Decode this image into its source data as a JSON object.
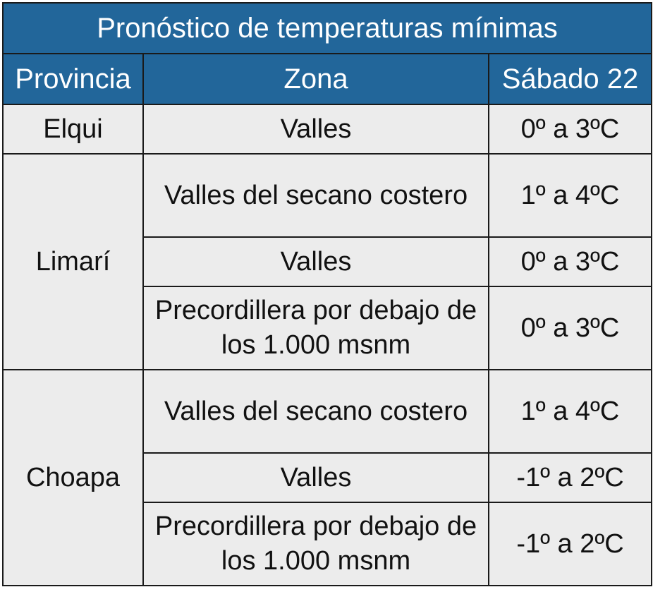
{
  "title": "Pronóstico de temperaturas mínimas",
  "headers": {
    "provincia": "Provincia",
    "zona": "Zona",
    "dia": "Sábado 22"
  },
  "provinces": [
    {
      "name": "Elqui",
      "rows": [
        {
          "zona": "Valles",
          "temp": "0º a 3ºC"
        }
      ]
    },
    {
      "name": "Limarí",
      "rows": [
        {
          "zona": "Valles del secano costero",
          "temp": "1º a 4ºC"
        },
        {
          "zona": "Valles",
          "temp": "0º a 3ºC"
        },
        {
          "zona": "Precordillera por debajo de los 1.000 msnm",
          "temp": "0º a 3ºC"
        }
      ]
    },
    {
      "name": "Choapa",
      "rows": [
        {
          "zona": "Valles del secano costero",
          "temp": "1º a 4ºC"
        },
        {
          "zona": "Valles",
          "temp": "-1º a 2ºC"
        },
        {
          "zona": "Precordillera por debajo de los 1.000 msnm",
          "temp": "-1º a 2ºC"
        }
      ]
    }
  ],
  "colors": {
    "header_bg": "#22669a",
    "header_text": "#ffffff",
    "cell_bg": "#ececec",
    "border": "#1a1a1a"
  }
}
